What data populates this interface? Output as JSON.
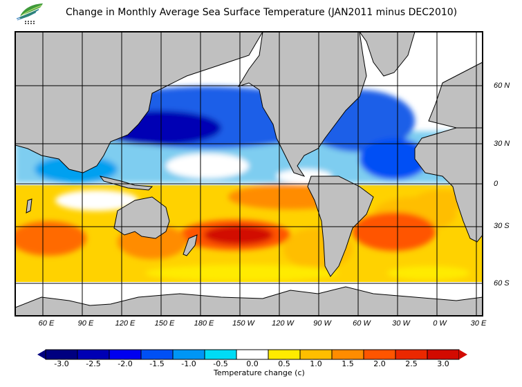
{
  "title": "Change in Monthly Average Sea Surface Temperature (JAN2011 minus DEC2010)",
  "logo": {
    "icon": "leaf-logo-icon",
    "colors": [
      "#2e8b3a",
      "#7cc242",
      "#1f6fb5"
    ]
  },
  "map": {
    "land_color": "#c0c0c0",
    "ice_color": "#e0e0e0",
    "grid_color": "#000000",
    "lon_labels": [
      "60 E",
      "90 E",
      "120 E",
      "150 E",
      "180 E",
      "150 W",
      "120 W",
      "90 W",
      "60 W",
      "30 W",
      "0 W",
      "30 E"
    ],
    "lat_labels": [
      "60 N",
      "30 N",
      "0",
      "30 S",
      "60 S"
    ]
  },
  "legend": {
    "title": "Temperature change  (c)",
    "bins": [
      {
        "label": "-3.0",
        "color": "#000080"
      },
      {
        "label": "-2.5",
        "color": "#0000b4"
      },
      {
        "label": "-2.0",
        "color": "#0000f0"
      },
      {
        "label": "-1.5",
        "color": "#0050f5"
      },
      {
        "label": "-1.0",
        "color": "#0096f5"
      },
      {
        "label": "-0.5",
        "color": "#00dcf5"
      },
      {
        "label": "0.0",
        "color": "#ffffff"
      },
      {
        "label": "0.5",
        "color": "#ffeb00"
      },
      {
        "label": "1.0",
        "color": "#ffbe00"
      },
      {
        "label": "1.5",
        "color": "#ff8c00"
      },
      {
        "label": "2.0",
        "color": "#ff5500"
      },
      {
        "label": "2.5",
        "color": "#eb2800"
      },
      {
        "label": "3.0",
        "color": "#d20a00"
      }
    ],
    "under_color": "#000080",
    "over_color": "#d20a00"
  }
}
